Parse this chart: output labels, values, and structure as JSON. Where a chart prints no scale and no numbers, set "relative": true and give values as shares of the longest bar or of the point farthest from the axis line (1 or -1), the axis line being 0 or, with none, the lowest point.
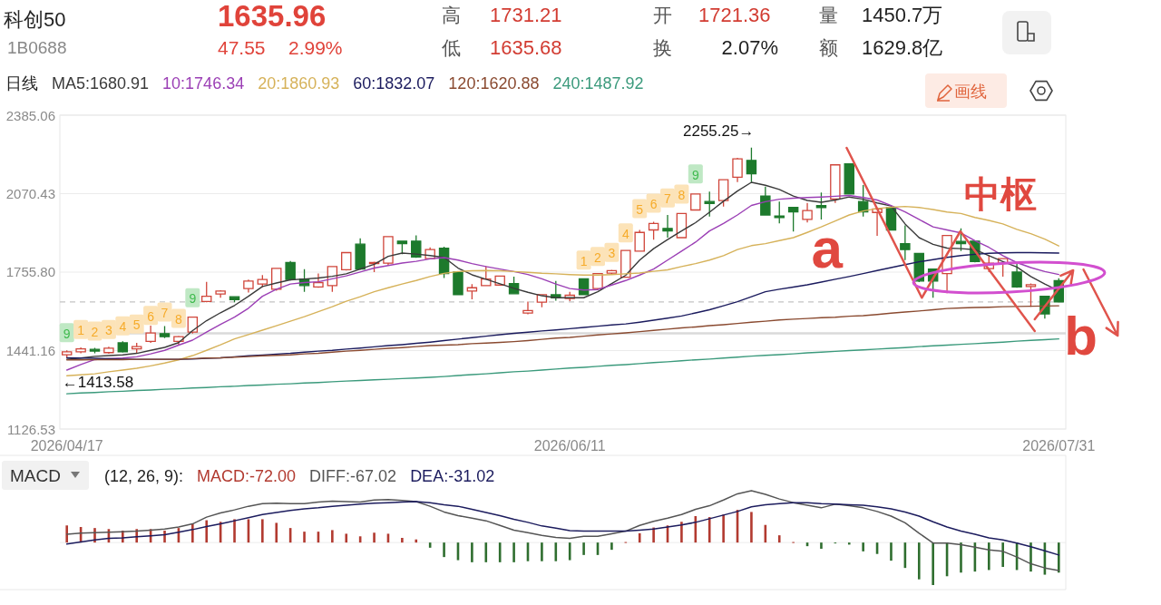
{
  "chart_data": [
    {
      "type": "other",
      "title": "科创50",
      "subtitle": "1B0688",
      "annotations": [
        "1635.96",
        "47.55",
        "2.99%",
        "高",
        "1731.21",
        "低",
        "1635.68",
        "开",
        "1721.36",
        "换",
        "2.07%",
        "量",
        "1450.7万",
        "额",
        "1629.8亿",
        "画线"
      ]
    },
    {
      "type": "candlestick",
      "legend_title": "日线",
      "legend": "top left",
      "grid": "y",
      "categories": [
        "2026/04/17",
        null,
        null,
        null,
        null,
        null,
        null,
        null,
        null,
        null,
        null,
        null,
        null,
        null,
        null,
        null,
        null,
        null,
        null,
        null,
        null,
        null,
        null,
        null,
        null,
        null,
        null,
        null,
        null,
        null,
        null,
        null,
        null,
        null,
        null,
        null,
        "2026/06/11",
        null,
        null,
        null,
        null,
        null,
        null,
        null,
        null,
        null,
        null,
        null,
        null,
        null,
        null,
        null,
        null,
        null,
        null,
        null,
        null,
        null,
        null,
        null,
        null,
        null,
        null,
        null,
        null,
        null,
        null,
        null,
        null,
        null,
        null,
        "2026/07/31"
      ],
      "ylim": [
        1126.53,
        2385.06
      ],
      "yticks": [
        1126.53,
        1441.16,
        {
          "value": 1755.8,
          "label": "1755.80"
        },
        2070.43,
        2385.06
      ],
      "ohlc": [
        [
          1424,
          1442,
          1413.58,
          1436
        ],
        [
          1436,
          1454,
          1430,
          1448
        ],
        [
          1446,
          1452,
          1430,
          1439
        ],
        [
          1433,
          1457,
          1428,
          1451
        ],
        [
          1472,
          1478,
          1433,
          1436
        ],
        [
          1448,
          1472,
          1430,
          1457
        ],
        [
          1478,
          1541,
          1472,
          1512
        ],
        [
          1509,
          1539,
          1491,
          1497
        ],
        [
          1478,
          1500,
          1464,
          1497
        ],
        [
          1515,
          1577,
          1509,
          1575
        ],
        [
          1638,
          1717,
          1635,
          1659
        ],
        [
          1668,
          1683,
          1653,
          1680
        ],
        [
          1657,
          1659,
          1635,
          1645
        ],
        [
          1690,
          1726,
          1674,
          1720
        ],
        [
          1708,
          1744,
          1696,
          1726
        ],
        [
          1687,
          1773,
          1681,
          1771
        ],
        [
          1794,
          1800,
          1722,
          1726
        ],
        [
          1728,
          1768,
          1677,
          1702
        ],
        [
          1696,
          1750,
          1693,
          1714
        ],
        [
          1702,
          1780,
          1677,
          1778
        ],
        [
          1765,
          1836,
          1762,
          1834
        ],
        [
          1868,
          1891,
          1765,
          1768
        ],
        [
          1790,
          1798,
          1756,
          1794
        ],
        [
          1792,
          1900,
          1782,
          1898
        ],
        [
          1880,
          1882,
          1828,
          1870
        ],
        [
          1880,
          1903,
          1813,
          1816
        ],
        [
          1810,
          1855,
          1808,
          1846
        ],
        [
          1852,
          1858,
          1732,
          1750
        ],
        [
          1756,
          1758,
          1663,
          1665
        ],
        [
          1680,
          1708,
          1647,
          1693
        ],
        [
          1702,
          1780,
          1699,
          1728
        ],
        [
          1704,
          1742,
          1702,
          1740
        ],
        [
          1710,
          1738,
          1667,
          1669
        ],
        [
          1592,
          1638,
          1587,
          1602
        ],
        [
          1635,
          1667,
          1615,
          1665
        ],
        [
          1665,
          1720,
          1641,
          1653
        ],
        [
          1650,
          1677,
          1639,
          1663
        ],
        [
          1729,
          1731,
          1663,
          1665
        ],
        [
          1690,
          1752,
          1684,
          1750
        ],
        [
          1752,
          1765,
          1746,
          1762
        ],
        [
          1735,
          1845,
          1733,
          1843
        ],
        [
          1840,
          1925,
          1838,
          1915
        ],
        [
          1925,
          1958,
          1886,
          1951
        ],
        [
          1931,
          1985,
          1894,
          1921
        ],
        [
          1894,
          1993,
          1892,
          1991
        ],
        [
          2005,
          2071,
          2002,
          2069
        ],
        [
          2039,
          2079,
          1979,
          2031
        ],
        [
          2043,
          2128,
          2019,
          2126
        ],
        [
          2136,
          2214,
          2117,
          2210
        ],
        [
          2204,
          2255.25,
          2117,
          2150
        ],
        [
          2061,
          2099,
          1982,
          1985
        ],
        [
          1981,
          2039,
          1951,
          1975
        ],
        [
          2015,
          2017,
          1919,
          1997
        ],
        [
          1967,
          2033,
          1955,
          2003
        ],
        [
          2023,
          2075,
          1967,
          2015
        ],
        [
          2049,
          2188,
          2033,
          2186
        ],
        [
          2190,
          2192,
          2067,
          2069
        ],
        [
          2039,
          2105,
          1979,
          1997
        ],
        [
          1995,
          2011,
          1901,
          2009
        ],
        [
          2015,
          2017,
          1922,
          1925
        ],
        [
          1870,
          1943,
          1804,
          1846
        ],
        [
          1831,
          1833,
          1716,
          1720
        ],
        [
          1768,
          1770,
          1653,
          1720
        ],
        [
          1750,
          1905,
          1671,
          1903
        ],
        [
          1879,
          1931,
          1840,
          1870
        ],
        [
          1880,
          1882,
          1795,
          1798
        ],
        [
          1770,
          1822,
          1756,
          1792
        ],
        [
          1792,
          1812,
          1738,
          1810
        ],
        [
          1756,
          1792,
          1693,
          1696
        ],
        [
          1698,
          1710,
          1617,
          1705
        ],
        [
          1659,
          1661,
          1569,
          1588.41
        ],
        [
          1721.36,
          1731.21,
          1635.68,
          1635.96
        ]
      ],
      "colors": [
        "#d0453a",
        "#d0453a",
        "#1d7a2c",
        "#d0453a",
        "#1d7a2c",
        "#d0453a",
        "#d0453a",
        "#1d7a2c",
        "#d0453a",
        "#d0453a",
        "#d0453a",
        "#d0453a",
        "#1d7a2c",
        "#d0453a",
        "#d0453a",
        "#d0453a",
        "#1d7a2c",
        "#1d7a2c",
        "#d0453a",
        "#d0453a",
        "#d0453a",
        "#1d7a2c",
        "#d0453a",
        "#d0453a",
        "#1d7a2c",
        "#1d7a2c",
        "#d0453a",
        "#1d7a2c",
        "#1d7a2c",
        "#d0453a",
        "#d0453a",
        "#d0453a",
        "#1d7a2c",
        "#d0453a",
        "#d0453a",
        "#1d7a2c",
        "#d0453a",
        "#1d7a2c",
        "#d0453a",
        "#d0453a",
        "#d0453a",
        "#d0453a",
        "#d0453a",
        "#1d7a2c",
        "#d0453a",
        "#d0453a",
        "#1d7a2c",
        "#d0453a",
        "#d0453a",
        "#1d7a2c",
        "#1d7a2c",
        "#1d7a2c",
        "#1d7a2c",
        "#d0453a",
        "#1d7a2c",
        "#d0453a",
        "#1d7a2c",
        "#1d7a2c",
        "#d0453a",
        "#1d7a2c",
        "#1d7a2c",
        "#1d7a2c",
        "#1d7a2c",
        "#d0453a",
        "#1d7a2c",
        "#1d7a2c",
        "#d0453a",
        "#d0453a",
        "#1d7a2c",
        "#d0453a",
        "#1d7a2c",
        "#1d7a2c"
      ],
      "series": [
        {
          "name": "MA5:1680.91",
          "type": "line",
          "color": "#3a3a3a",
          "values": [
            1406,
            1411,
            1418,
            1421,
            1424,
            1430,
            1442,
            1454,
            1473,
            1521,
            1561,
            1593,
            1622,
            1659,
            1698,
            1712,
            1725,
            1728,
            1732,
            1739,
            1749,
            1768,
            1787,
            1819,
            1832,
            1828,
            1822,
            1815,
            1772,
            1745,
            1727,
            1709,
            1691,
            1675,
            1661,
            1653,
            1653,
            1653,
            1677,
            1710,
            1743,
            1804,
            1850,
            1886,
            1921,
            1954,
            1996,
            2040,
            2081,
            2116,
            2104,
            2087,
            2061,
            2043,
            2036,
            2045,
            2057,
            2048,
            2033,
            2021,
            1949,
            1894,
            1867,
            1852,
            1850,
            1846,
            1822,
            1798,
            1776,
            1738,
            1708,
            1680.91
          ]
        },
        {
          "name": "10:1746.34",
          "type": "line",
          "color": "#9b3fb5",
          "values": [
            1363,
            1385,
            1405,
            1409,
            1411,
            1416,
            1428,
            1442,
            1463,
            1483,
            1515,
            1546,
            1575,
            1611,
            1659,
            1687,
            1708,
            1714,
            1717,
            1729,
            1741,
            1756,
            1772,
            1782,
            1792,
            1799,
            1809,
            1814,
            1804,
            1790,
            1778,
            1768,
            1758,
            1746,
            1729,
            1708,
            1690,
            1684,
            1686,
            1704,
            1722,
            1744,
            1768,
            1804,
            1840,
            1876,
            1921,
            1951,
            1985,
            2023,
            2038,
            2048,
            2052,
            2055,
            2057,
            2060,
            2063,
            2055,
            2045,
            2023,
            1997,
            1967,
            1937,
            1925,
            1913,
            1882,
            1855,
            1822,
            1794,
            1774,
            1758,
            1746.34
          ]
        },
        {
          "name": "20:1860.93",
          "type": "line",
          "color": "#d6b25a",
          "values": [
            1340,
            1344,
            1348,
            1356,
            1363,
            1370,
            1380,
            1391,
            1404,
            1421,
            1442,
            1464,
            1488,
            1505,
            1523,
            1541,
            1559,
            1577,
            1597,
            1617,
            1639,
            1657,
            1677,
            1693,
            1708,
            1722,
            1738,
            1751,
            1758,
            1761,
            1762,
            1761,
            1758,
            1755,
            1751,
            1749,
            1746,
            1744,
            1744,
            1746,
            1749,
            1752,
            1759,
            1765,
            1778,
            1790,
            1804,
            1822,
            1846,
            1862,
            1870,
            1882,
            1894,
            1915,
            1937,
            1961,
            1985,
            2001,
            2011,
            2016,
            2019,
            2015,
            2007,
            1997,
            1991,
            1975,
            1963,
            1949,
            1927,
            1910,
            1888,
            1860.93
          ]
        },
        {
          "name": "60:1832.07",
          "type": "line",
          "color": "#1b1b5e",
          "values": [
            1412,
            1411,
            1410,
            1409,
            1407,
            1406,
            1406,
            1406,
            1406,
            1407,
            1410,
            1412,
            1416,
            1420,
            1423,
            1427,
            1430,
            1435,
            1439,
            1442,
            1447,
            1451,
            1456,
            1461,
            1465,
            1470,
            1475,
            1481,
            1487,
            1493,
            1499,
            1505,
            1510,
            1515,
            1520,
            1524,
            1529,
            1534,
            1539,
            1544,
            1548,
            1555,
            1563,
            1571,
            1580,
            1592,
            1605,
            1621,
            1637,
            1657,
            1677,
            1687,
            1696,
            1705,
            1716,
            1727,
            1738,
            1750,
            1762,
            1774,
            1786,
            1797,
            1806,
            1815,
            1822,
            1827,
            1831,
            1833,
            1834,
            1834,
            1833,
            1832.07
          ]
        },
        {
          "name": "120:1620.88",
          "type": "line",
          "color": "#8a4a30",
          "values": [
            1404,
            1404,
            1405,
            1405,
            1405,
            1406,
            1406,
            1406,
            1406,
            1409,
            1411,
            1412,
            1415,
            1417,
            1420,
            1422,
            1424,
            1428,
            1430,
            1435,
            1439,
            1442,
            1446,
            1450,
            1453,
            1457,
            1461,
            1463,
            1465,
            1469,
            1471,
            1474,
            1477,
            1481,
            1486,
            1491,
            1494,
            1499,
            1504,
            1508,
            1512,
            1517,
            1522,
            1527,
            1532,
            1536,
            1541,
            1545,
            1550,
            1555,
            1559,
            1564,
            1567,
            1570,
            1573,
            1575,
            1579,
            1581,
            1586,
            1591,
            1596,
            1600,
            1605,
            1610,
            1612,
            1614,
            1615,
            1617,
            1618,
            1619,
            1620,
            1620.88
          ]
        },
        {
          "name": "240:1487.92",
          "type": "line",
          "color": "#3b9a7c",
          "values": [
            1268,
            1271,
            1273,
            1276,
            1278,
            1281,
            1283,
            1286,
            1288,
            1291,
            1293,
            1296,
            1298,
            1301,
            1303,
            1306,
            1308,
            1311,
            1313,
            1316,
            1319,
            1321,
            1324,
            1326,
            1329,
            1331,
            1334,
            1337,
            1341,
            1345,
            1348,
            1352,
            1356,
            1359,
            1363,
            1367,
            1371,
            1374,
            1378,
            1382,
            1385,
            1389,
            1393,
            1396,
            1400,
            1404,
            1407,
            1411,
            1415,
            1419,
            1422,
            1425,
            1428,
            1432,
            1435,
            1438,
            1441,
            1444,
            1447,
            1450,
            1453,
            1457,
            1460,
            1463,
            1466,
            1469,
            1472,
            1475,
            1479,
            1482,
            1485,
            1487.92
          ]
        }
      ],
      "ref_lines": [
        {
          "axis": "y",
          "value": 1635.96,
          "color": "#c4c4c4",
          "line_style": "dashed"
        },
        {
          "axis": "y",
          "value": 1510,
          "color": "#dadada"
        }
      ],
      "annotations": [
        "2255.25→",
        {
          "text": "←1413.58",
          "x": "2026/04/17",
          "y": 1413.58
        },
        {
          "text": "a",
          "y": 1653
        },
        "中枢",
        "b",
        "9",
        "1",
        "2",
        "3",
        "4",
        "5",
        "6",
        "7",
        "8",
        "9",
        "1",
        "2",
        "3",
        "4",
        "5",
        "6",
        "7",
        "8",
        "9"
      ]
    },
    {
      "type": "bar",
      "title": "MACD",
      "legend_title": "(12, 26, 9):",
      "legend": "top left",
      "relative": true,
      "categories": [
        null,
        null,
        null,
        null,
        null,
        null,
        null,
        null,
        null,
        null,
        null,
        null,
        null,
        null,
        null,
        null,
        null,
        null,
        null,
        null,
        null,
        null,
        null,
        null,
        null,
        null,
        null,
        null,
        null,
        null,
        null,
        null,
        null,
        null,
        null,
        null,
        null,
        null,
        null,
        null,
        null,
        null,
        null,
        null,
        null,
        null,
        null,
        null,
        null,
        null,
        null,
        null,
        null,
        null,
        null,
        null,
        null,
        null,
        null,
        null,
        null,
        null,
        null,
        null,
        null,
        null,
        null,
        null,
        null,
        null,
        null,
        null
      ],
      "series": [
        {
          "name": "MACD:-72.00",
          "type": "bar",
          "values": [
            0.33,
            0.3,
            0.28,
            0.26,
            0.23,
            0.26,
            0.26,
            0.23,
            0.28,
            0.36,
            0.43,
            0.4,
            0.45,
            0.45,
            0.45,
            0.38,
            0.28,
            0.21,
            0.21,
            0.24,
            0.17,
            0.12,
            0.19,
            0.17,
            0.09,
            0.06,
            -0.1,
            -0.28,
            -0.34,
            -0.38,
            -0.38,
            -0.38,
            -0.38,
            -0.36,
            -0.36,
            -0.36,
            -0.34,
            -0.24,
            -0.24,
            -0.14,
            0.01,
            0.18,
            0.29,
            0.33,
            0.4,
            0.51,
            0.49,
            0.54,
            0.63,
            0.59,
            0.34,
            0.14,
            0.01,
            -0.07,
            -0.12,
            -0.01,
            -0.04,
            -0.17,
            -0.22,
            -0.35,
            -0.49,
            -0.71,
            -0.82,
            -0.65,
            -0.58,
            -0.56,
            -0.53,
            -0.47,
            -0.53,
            -0.56,
            -0.62,
            -0.58
          ],
          "colors": [
            "#b23a30",
            "#b23a30",
            "#b23a30",
            "#b23a30",
            "#b23a30",
            "#b23a30",
            "#b23a30",
            "#b23a30",
            "#b23a30",
            "#b23a30",
            "#b23a30",
            "#b23a30",
            "#b23a30",
            "#b23a30",
            "#b23a30",
            "#b23a30",
            "#b23a30",
            "#b23a30",
            "#b23a30",
            "#b23a30",
            "#b23a30",
            "#b23a30",
            "#b23a30",
            "#b23a30",
            "#b23a30",
            "#b23a30",
            "#2f6e2f",
            "#2f6e2f",
            "#2f6e2f",
            "#2f6e2f",
            "#2f6e2f",
            "#2f6e2f",
            "#2f6e2f",
            "#2f6e2f",
            "#2f6e2f",
            "#2f6e2f",
            "#2f6e2f",
            "#2f6e2f",
            "#2f6e2f",
            "#2f6e2f",
            "#b23a30",
            "#b23a30",
            "#b23a30",
            "#b23a30",
            "#b23a30",
            "#b23a30",
            "#b23a30",
            "#b23a30",
            "#b23a30",
            "#b23a30",
            "#b23a30",
            "#b23a30",
            "#b23a30",
            "#2f6e2f",
            "#2f6e2f",
            "#2f6e2f",
            "#2f6e2f",
            "#2f6e2f",
            "#2f6e2f",
            "#2f6e2f",
            "#2f6e2f",
            "#2f6e2f",
            "#2f6e2f",
            "#2f6e2f",
            "#2f6e2f",
            "#2f6e2f",
            "#2f6e2f",
            "#2f6e2f",
            "#2f6e2f",
            "#2f6e2f",
            "#2f6e2f",
            "#2f6e2f"
          ]
        },
        {
          "name": "DIFF:-67.02",
          "type": "line",
          "color": "#555555",
          "values": [
            0.16,
            0.18,
            0.19,
            0.2,
            0.21,
            0.22,
            0.24,
            0.26,
            0.3,
            0.36,
            0.49,
            0.57,
            0.63,
            0.7,
            0.75,
            0.76,
            0.75,
            0.75,
            0.78,
            0.8,
            0.79,
            0.78,
            0.82,
            0.83,
            0.81,
            0.79,
            0.7,
            0.59,
            0.52,
            0.47,
            0.42,
            0.33,
            0.24,
            0.19,
            0.14,
            0.1,
            0.08,
            0.12,
            0.12,
            0.17,
            0.22,
            0.33,
            0.41,
            0.47,
            0.54,
            0.64,
            0.71,
            0.82,
            0.94,
            1,
            0.93,
            0.84,
            0.77,
            0.72,
            0.67,
            0.74,
            0.71,
            0.67,
            0.6,
            0.51,
            0.38,
            0.18,
            -0.01,
            -0.01,
            -0.04,
            -0.09,
            -0.14,
            -0.17,
            -0.28,
            -0.41,
            -0.49,
            -0.54
          ]
        },
        {
          "name": "DEA:-31.02",
          "type": "line",
          "color": "#1c1c5e",
          "values": [
            -0.03,
            0.01,
            0.05,
            0.08,
            0.09,
            0.11,
            0.13,
            0.15,
            0.2,
            0.25,
            0.31,
            0.36,
            0.42,
            0.48,
            0.54,
            0.58,
            0.62,
            0.65,
            0.67,
            0.7,
            0.72,
            0.74,
            0.76,
            0.77,
            0.78,
            0.79,
            0.77,
            0.73,
            0.7,
            0.64,
            0.58,
            0.52,
            0.45,
            0.39,
            0.32,
            0.28,
            0.23,
            0.22,
            0.22,
            0.22,
            0.22,
            0.24,
            0.26,
            0.3,
            0.34,
            0.39,
            0.46,
            0.53,
            0.6,
            0.69,
            0.73,
            0.75,
            0.77,
            0.77,
            0.75,
            0.74,
            0.73,
            0.72,
            0.69,
            0.65,
            0.59,
            0.51,
            0.4,
            0.3,
            0.22,
            0.16,
            0.09,
            0.05,
            -0.01,
            -0.08,
            -0.16,
            -0.24
          ]
        }
      ]
    }
  ]
}
